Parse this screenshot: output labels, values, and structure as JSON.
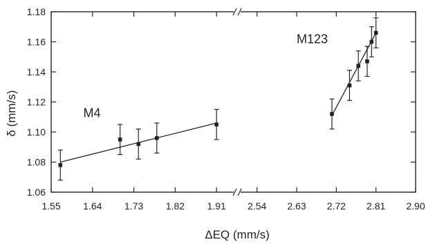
{
  "chart_data": {
    "type": "scatter",
    "xlabel": "ΔEQ (mm/s)",
    "ylabel": "δ (mm/s)",
    "ylim": [
      1.06,
      1.18
    ],
    "yticks": [
      "1.06",
      "1.08",
      "1.10",
      "1.12",
      "1.14",
      "1.16",
      "1.18"
    ],
    "axis_break": true,
    "grid": false,
    "x_segments": [
      {
        "range": [
          1.55,
          1.955
        ],
        "ticks": [
          "1.55",
          "1.64",
          "1.73",
          "1.82",
          "1.91"
        ]
      },
      {
        "range": [
          2.495,
          2.9
        ],
        "ticks": [
          "2.54",
          "2.63",
          "2.72",
          "2.81",
          "2.90"
        ]
      }
    ],
    "series": [
      {
        "name": "M4",
        "points": [
          {
            "x": 1.57,
            "y": 1.078,
            "err": 0.01
          },
          {
            "x": 1.7,
            "y": 1.095,
            "err": 0.01
          },
          {
            "x": 1.74,
            "y": 1.092,
            "err": 0.01
          },
          {
            "x": 1.78,
            "y": 1.096,
            "err": 0.01
          },
          {
            "x": 1.91,
            "y": 1.105,
            "err": 0.01
          }
        ],
        "fit": {
          "x": [
            1.57,
            1.91
          ],
          "y": [
            1.08,
            1.106
          ]
        }
      },
      {
        "name": "M123",
        "points": [
          {
            "x": 2.71,
            "y": 1.112,
            "err": 0.01
          },
          {
            "x": 2.75,
            "y": 1.131,
            "err": 0.01
          },
          {
            "x": 2.77,
            "y": 1.144,
            "err": 0.01
          },
          {
            "x": 2.79,
            "y": 1.147,
            "err": 0.01
          },
          {
            "x": 2.8,
            "y": 1.16,
            "err": 0.01
          },
          {
            "x": 2.81,
            "y": 1.166,
            "err": 0.01
          }
        ],
        "fit": {
          "x": [
            2.71,
            2.81
          ],
          "y": [
            1.111,
            1.166
          ]
        }
      }
    ],
    "annotations": [
      {
        "text": "M4",
        "x": 1.62,
        "y": 1.11
      },
      {
        "text": "M123",
        "x": 2.63,
        "y": 1.159
      }
    ]
  }
}
